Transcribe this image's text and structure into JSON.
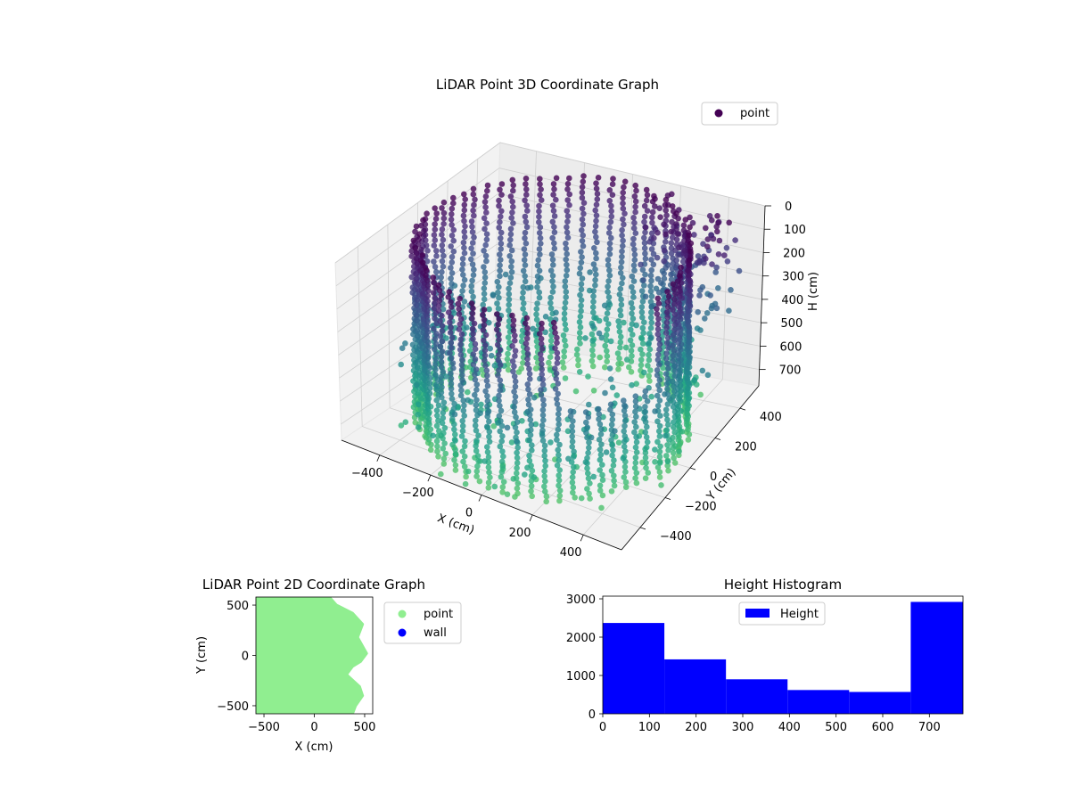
{
  "chart_data": [
    {
      "type": "scatter",
      "projection": "3d",
      "title": "LiDAR Point 3D Coordinate Graph",
      "xlabel": "X (cm)",
      "ylabel": "Y (cm)",
      "zlabel": "H (cm)",
      "x_ticks": [
        "−400",
        "−200",
        "0",
        "200",
        "400"
      ],
      "y_ticks": [
        "−400",
        "−200",
        "0",
        "200",
        "400"
      ],
      "z_ticks": [
        "0",
        "100",
        "200",
        "300",
        "400",
        "500",
        "600",
        "700"
      ],
      "xlim": [
        -550,
        550
      ],
      "ylim": [
        -550,
        550
      ],
      "zlim": [
        0,
        770
      ],
      "z_inverted": true,
      "colormap": "viridis",
      "legend": {
        "placement": "upper-right",
        "entries": [
          {
            "label": "point",
            "color": "#440154"
          }
        ]
      },
      "grid": true,
      "series": [
        {
          "name": "point",
          "description_of_shape": "cylindrical wall of points, radius ~480 cm, heights 0-770 cm, colored by height",
          "radius": 480,
          "height_range": [
            0,
            770
          ]
        }
      ]
    },
    {
      "type": "scatter",
      "title": "LiDAR Point 2D Coordinate Graph",
      "xlabel": "X (cm)",
      "ylabel": "Y (cm)",
      "x_ticks": [
        "−500",
        "0",
        "500"
      ],
      "y_ticks": [
        "−500",
        "0",
        "500"
      ],
      "xlim": [
        -580,
        580
      ],
      "ylim": [
        -580,
        580
      ],
      "legend": {
        "placement": "outside-right",
        "entries": [
          {
            "label": "point",
            "color": "#90ee90"
          },
          {
            "label": "wall",
            "color": "#0000ff"
          }
        ]
      },
      "series": [
        {
          "name": "point",
          "color": "#90ee90",
          "outline_right_edge": [
            [
              -580,
              580
            ],
            [
              150,
              580
            ],
            [
              220,
              500
            ],
            [
              380,
              420
            ],
            [
              480,
              310
            ],
            [
              430,
              180
            ],
            [
              520,
              20
            ],
            [
              460,
              -60
            ],
            [
              380,
              -110
            ],
            [
              320,
              -190
            ],
            [
              450,
              -310
            ],
            [
              480,
              -400
            ],
            [
              410,
              -500
            ],
            [
              380,
              -580
            ],
            [
              -580,
              -580
            ]
          ]
        },
        {
          "name": "wall",
          "color": "#0000ff",
          "values": []
        }
      ]
    },
    {
      "type": "bar",
      "title": "Height Histogram",
      "xlabel": "",
      "ylabel": "",
      "bin_edges": [
        0,
        132,
        264,
        396,
        528,
        660,
        772
      ],
      "values": [
        2370,
        1420,
        900,
        620,
        570,
        2920
      ],
      "color": "#0000ff",
      "x_ticks": [
        "0",
        "100",
        "200",
        "300",
        "400",
        "500",
        "600",
        "700"
      ],
      "y_ticks": [
        "0",
        "1000",
        "2000",
        "3000"
      ],
      "xlim": [
        0,
        772
      ],
      "ylim": [
        0,
        3070
      ],
      "legend": {
        "placement": "upper-center",
        "entries": [
          {
            "label": "Height",
            "color": "#0000ff"
          }
        ]
      }
    }
  ]
}
